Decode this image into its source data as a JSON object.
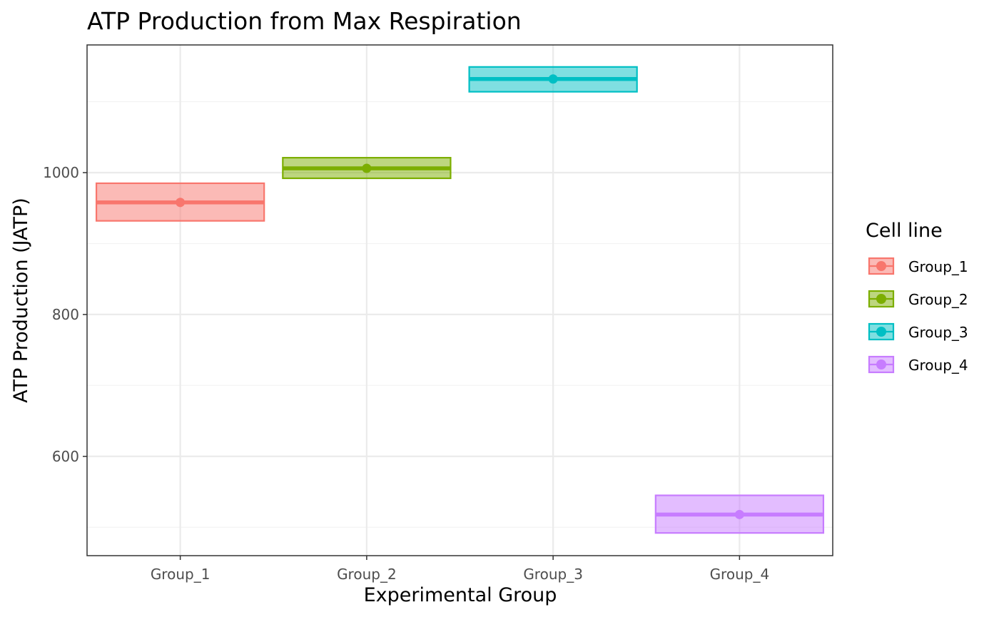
{
  "chart_data": {
    "type": "crossbar",
    "title": "ATP Production from Max Respiration",
    "xlabel": "Experimental Group",
    "ylabel": "ATP Production (JATP)",
    "categories": [
      "Group_1",
      "Group_2",
      "Group_3",
      "Group_4"
    ],
    "ylim": [
      460,
      1180
    ],
    "y_ticks": [
      600,
      800,
      1000
    ],
    "y_minor_ticks": [
      500,
      700,
      900,
      1100
    ],
    "grid": true,
    "legend": {
      "title": "Cell line",
      "placement": "right",
      "entries": [
        "Group_1",
        "Group_2",
        "Group_3",
        "Group_4"
      ]
    },
    "series": [
      {
        "name": "Group_1",
        "color": "#F8766D",
        "mean": 958,
        "lower": 932,
        "upper": 985
      },
      {
        "name": "Group_2",
        "color": "#7CAE00",
        "mean": 1006,
        "lower": 992,
        "upper": 1021
      },
      {
        "name": "Group_3",
        "color": "#00BFC4",
        "mean": 1132,
        "lower": 1114,
        "upper": 1149
      },
      {
        "name": "Group_4",
        "color": "#C77CFF",
        "mean": 518,
        "lower": 492,
        "upper": 545
      }
    ]
  }
}
